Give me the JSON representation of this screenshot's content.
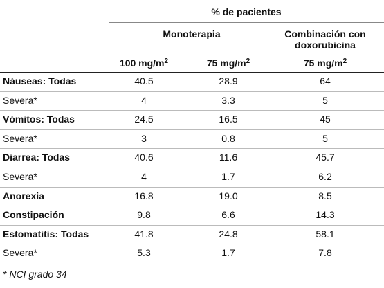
{
  "table": {
    "group_header": "% de pacientes",
    "subgroups": [
      "Monoterapia",
      "Combinación con doxorubicina"
    ],
    "columns": [
      {
        "text": "100 mg/m",
        "sup": "2"
      },
      {
        "text": "75 mg/m",
        "sup": "2"
      },
      {
        "text": "75 mg/m",
        "sup": "2"
      }
    ],
    "rows": [
      {
        "label": "Náuseas: Todas",
        "bold": true,
        "cells": [
          "40.5",
          "28.9",
          "64"
        ]
      },
      {
        "label": "Severa*",
        "bold": false,
        "cells": [
          "4",
          "3.3",
          "5"
        ]
      },
      {
        "label": "Vómitos: Todas",
        "bold": true,
        "cells": [
          "24.5",
          "16.5",
          "45"
        ]
      },
      {
        "label": "Severa*",
        "bold": false,
        "cells": [
          "3",
          "0.8",
          "5"
        ]
      },
      {
        "label": "Diarrea: Todas",
        "bold": true,
        "cells": [
          "40.6",
          "11.6",
          "45.7"
        ]
      },
      {
        "label": "Severa*",
        "bold": false,
        "cells": [
          "4",
          "1.7",
          "6.2"
        ]
      },
      {
        "label": "Anorexia",
        "bold": true,
        "cells": [
          "16.8",
          "19.0",
          "8.5"
        ]
      },
      {
        "label": "Constipación",
        "bold": true,
        "cells": [
          "9.8",
          "6.6",
          "14.3"
        ]
      },
      {
        "label": "Estomatitis: Todas",
        "bold": true,
        "cells": [
          "41.8",
          "24.8",
          "58.1"
        ]
      },
      {
        "label": "Severa*",
        "bold": false,
        "cells": [
          "5.3",
          "1.7",
          "7.8"
        ]
      }
    ],
    "footnote": "* NCI grado 34"
  }
}
